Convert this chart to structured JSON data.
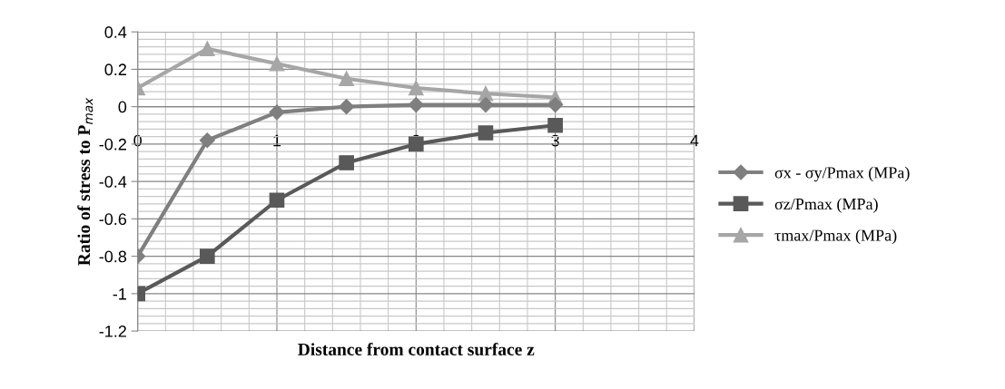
{
  "chart_data": {
    "type": "line",
    "xlabel": "Distance from contact surface z",
    "ylabel": "Ratio of stress to P$_{max}$",
    "x": [
      0,
      0.5,
      1,
      1.5,
      2,
      2.5,
      3
    ],
    "series": [
      {
        "name": "σx - σy/Pmax (MPa)",
        "color": "#7f7f7f",
        "marker": "diamond",
        "values": [
          -0.8,
          -0.18,
          -0.03,
          0,
          0.01,
          0.01,
          0.01
        ]
      },
      {
        "name": "σz/Pmax (MPa)",
        "color": "#595959",
        "marker": "square",
        "values": [
          -1,
          -0.8,
          -0.5,
          -0.3,
          -0.2,
          -0.14,
          -0.1
        ]
      },
      {
        "name": "τmax/Pmax (MPa)",
        "color": "#a6a6a6",
        "marker": "triangle",
        "values": [
          0.1,
          0.31,
          0.23,
          0.15,
          0.1,
          0.07,
          0.05
        ]
      }
    ],
    "xlim": [
      0,
      4
    ],
    "xticks": [
      0,
      1,
      2,
      3,
      4
    ],
    "ylim": [
      -1.2,
      0.4
    ],
    "yticks": [
      -1.2,
      -1,
      -0.8,
      -0.6,
      -0.4,
      -0.2,
      0,
      0.2,
      0.4
    ],
    "grid": true,
    "legend": "right",
    "line_style": "solid"
  }
}
